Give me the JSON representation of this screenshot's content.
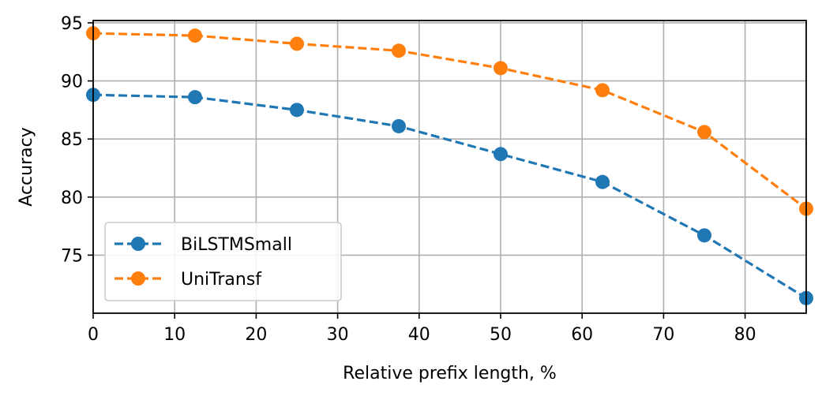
{
  "chart_data": {
    "type": "line",
    "title": "",
    "xlabel": "Relative prefix length, %",
    "ylabel": "Accuracy",
    "xlim": [
      0,
      87.5
    ],
    "ylim": [
      70.0,
      95.2
    ],
    "xticks": [
      0,
      10,
      20,
      30,
      40,
      50,
      60,
      70,
      80
    ],
    "yticks": [
      75,
      80,
      85,
      90,
      95
    ],
    "grid": true,
    "legend_position": "lower-left",
    "x": [
      0,
      12.5,
      25,
      37.5,
      50,
      62.5,
      75,
      87.5
    ],
    "series": [
      {
        "name": "BiLSTMSmall",
        "color": "#1f77b4",
        "line_style": "dashed",
        "marker": "circle",
        "values": [
          88.8,
          88.6,
          87.5,
          86.1,
          83.7,
          81.3,
          76.7,
          71.3
        ]
      },
      {
        "name": "UniTransf",
        "color": "#ff7f0e",
        "line_style": "dashed",
        "marker": "circle",
        "values": [
          94.1,
          93.9,
          93.2,
          92.6,
          91.1,
          89.2,
          85.6,
          79.0
        ]
      }
    ]
  }
}
